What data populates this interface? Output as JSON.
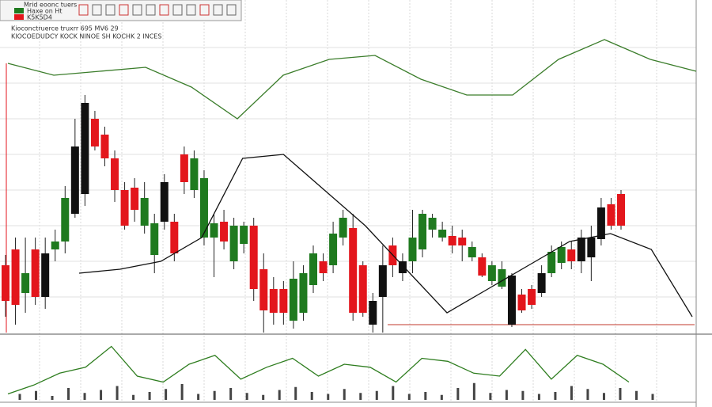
{
  "chart_data": {
    "type": "candlestick",
    "toolbar_lines": [
      "Mrid eoonc tuers",
      "Haxe on Ht",
      "K5K5D4"
    ],
    "title": "Kioconctruerce truxrr 695 MV6 29",
    "subtitle": "KIOCOEDUDCY KOCK NINOE SH KOCHK 2 INCES",
    "ylim": [
      0,
      405
    ],
    "colors": [
      "#e3161c",
      "#e3161c",
      "#1f7a1f",
      "#e3161c",
      "#111111",
      "#1f7a1f",
      "#1f7a1f",
      "#111111",
      "#111111",
      "#e3161c",
      "#e3161c",
      "#e3161c",
      "#e3161c",
      "#e3161c",
      "#1f7a1f",
      "#1f7a1f",
      "#111111",
      "#e3161c",
      "#e3161c",
      "#1f7a1f",
      "#1f7a1f",
      "#1f7a1f",
      "#e3161c",
      "#1f7a1f",
      "#1f7a1f",
      "#e3161c",
      "#e3161c",
      "#e3161c",
      "#e3161c",
      "#1f7a1f",
      "#1f7a1f",
      "#1f7a1f",
      "#e3161c",
      "#1f7a1f",
      "#1f7a1f",
      "#e3161c",
      "#e3161c",
      "#111111",
      "#111111",
      "#e3161c",
      "#111111",
      "#1f7a1f",
      "#1f7a1f",
      "#1f7a1f",
      "#1f7a1f",
      "#e3161c",
      "#e3161c",
      "#1f7a1f",
      "#e3161c",
      "#1f7a1f",
      "#1f7a1f",
      "#111111",
      "#e3161c",
      "#e3161c",
      "#111111",
      "#1f7a1f",
      "#1f7a1f",
      "#e3161c",
      "#111111",
      "#111111",
      "#111111",
      "#e3161c",
      "#e3161c"
    ],
    "open": [
      85,
      105,
      50,
      105,
      45,
      105,
      115,
      150,
      175,
      270,
      250,
      220,
      180,
      183,
      135,
      98,
      140,
      140,
      225,
      180,
      120,
      120,
      140,
      90,
      112,
      135,
      80,
      55,
      55,
      15,
      25,
      60,
      90,
      85,
      120,
      132,
      85,
      10,
      45,
      110,
      75,
      90,
      105,
      130,
      120,
      122,
      120,
      95,
      95,
      65,
      58,
      10,
      48,
      55,
      50,
      75,
      88,
      105,
      90,
      95,
      118,
      162,
      175
    ],
    "high": [
      98,
      120,
      120,
      120,
      120,
      130,
      185,
      270,
      300,
      280,
      260,
      230,
      190,
      195,
      190,
      150,
      200,
      150,
      235,
      230,
      205,
      150,
      155,
      145,
      140,
      145,
      100,
      70,
      65,
      90,
      85,
      110,
      100,
      140,
      155,
      150,
      90,
      50,
      110,
      120,
      100,
      155,
      155,
      150,
      140,
      135,
      130,
      115,
      100,
      90,
      90,
      75,
      55,
      60,
      85,
      110,
      115,
      115,
      130,
      135,
      170,
      170,
      180
    ],
    "low": [
      20,
      10,
      25,
      35,
      30,
      90,
      100,
      145,
      160,
      230,
      210,
      165,
      130,
      140,
      125,
      75,
      130,
      90,
      175,
      170,
      110,
      70,
      105,
      80,
      100,
      40,
      0,
      10,
      10,
      5,
      15,
      50,
      65,
      75,
      110,
      15,
      20,
      0,
      0,
      70,
      65,
      75,
      95,
      120,
      115,
      100,
      90,
      90,
      70,
      60,
      55,
      7,
      25,
      30,
      45,
      70,
      80,
      80,
      75,
      65,
      110,
      130,
      130
    ],
    "close": [
      40,
      35,
      75,
      45,
      100,
      115,
      170,
      235,
      290,
      235,
      220,
      180,
      135,
      155,
      170,
      138,
      190,
      100,
      190,
      220,
      195,
      138,
      115,
      135,
      135,
      55,
      28,
      25,
      25,
      68,
      75,
      100,
      75,
      125,
      145,
      25,
      25,
      40,
      85,
      85,
      90,
      120,
      150,
      145,
      130,
      110,
      110,
      108,
      72,
      85,
      80,
      72,
      28,
      35,
      75,
      102,
      108,
      90,
      120,
      120,
      158,
      135,
      135
    ],
    "moving_average": {
      "color": "#111111",
      "values": [
        75,
        80,
        90,
        120,
        220,
        225,
        180,
        135,
        80,
        25,
        55,
        85,
        115,
        125,
        105,
        20
      ]
    },
    "indicator_line": {
      "color": "#3b7d2b",
      "values": [
        340,
        325,
        330,
        335,
        310,
        270,
        325,
        345,
        350,
        320,
        300,
        300,
        345,
        370,
        345,
        330
      ]
    },
    "oscillator": {
      "color": "#2e7d1f",
      "ylim": [
        0,
        100
      ],
      "values": [
        10,
        25,
        45,
        55,
        90,
        40,
        30,
        60,
        75,
        35,
        55,
        70,
        40,
        60,
        55,
        30,
        70,
        65,
        45,
        40,
        85,
        35,
        75,
        60,
        30
      ]
    },
    "volume": {
      "color": "#444444",
      "ylim": [
        0,
        100
      ],
      "values": [
        30,
        45,
        20,
        60,
        35,
        50,
        70,
        25,
        40,
        55,
        80,
        30,
        45,
        60,
        35,
        25,
        50,
        65,
        40,
        30,
        55,
        35,
        45,
        70,
        30,
        40,
        25,
        60,
        85,
        35,
        50,
        45,
        30,
        40,
        70,
        55,
        35,
        60,
        45,
        30
      ]
    }
  }
}
